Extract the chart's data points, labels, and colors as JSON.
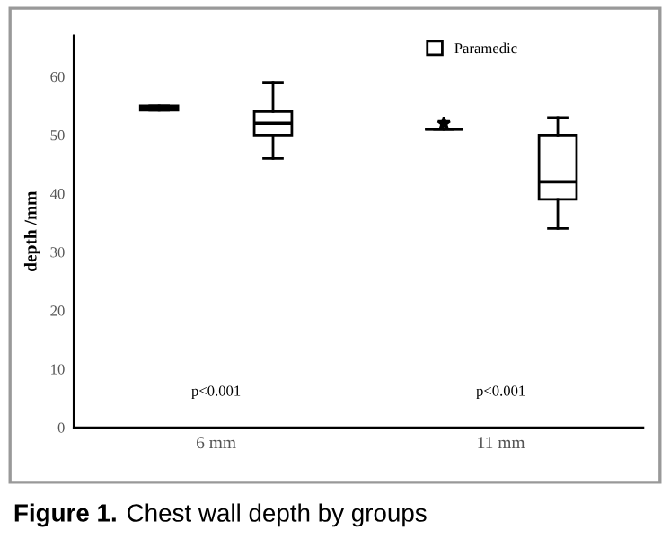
{
  "chart_data": {
    "type": "box",
    "title": "Figure 1. Chest wall depth by groups",
    "ylabel": "depth /mm",
    "categories": [
      "6 mm",
      "11 mm"
    ],
    "series": [
      {
        "color": "#000000",
        "boxes": [
          {
            "low": 54.2,
            "q1": 54.2,
            "median": 54.6,
            "q3": 55,
            "high": 55
          },
          {
            "low": 51,
            "q1": 51,
            "median": 51,
            "q3": 51,
            "high": 51,
            "outliers": [
              52
            ]
          }
        ]
      },
      {
        "name": "Paramedic",
        "color": "#ffffff",
        "boxes": [
          {
            "low": 46,
            "q1": 50,
            "median": 52,
            "q3": 54,
            "high": 59
          },
          {
            "low": 34,
            "q1": 39,
            "median": 42,
            "q3": 50,
            "high": 53
          }
        ]
      }
    ],
    "annotations": [
      "p<0.001",
      "p<0.001"
    ],
    "ylim": [
      0,
      67
    ],
    "yticks": [
      0,
      10,
      20,
      30,
      40,
      50,
      60
    ],
    "legend": "top",
    "grid": false
  }
}
